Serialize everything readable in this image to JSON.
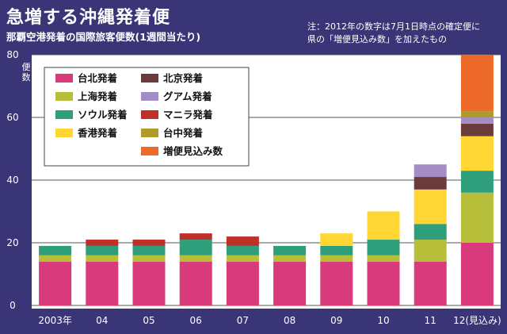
{
  "chart_data": {
    "type": "bar",
    "stacked": true,
    "title": "急増する沖縄発着便",
    "subtitle": "那覇空港発着の国際旅客便数(1週間当たり)",
    "note": [
      "注：2012年の数字は7月1日時点の確定便に",
      "県の「増便見込み数」を加えたもの"
    ],
    "ylabel": "便数",
    "ylim": [
      0,
      80
    ],
    "yticks": [
      0,
      20,
      40,
      60,
      80
    ],
    "grid": true,
    "legend_position": "top-left",
    "categories": [
      "2003年",
      "04",
      "05",
      "06",
      "07",
      "08",
      "09",
      "10",
      "11",
      "12(見込み)"
    ],
    "series": [
      {
        "name": "台北発着",
        "color": "#d93a7c",
        "values": [
          14,
          14,
          14,
          14,
          14,
          14,
          14,
          14,
          14,
          20
        ]
      },
      {
        "name": "上海発着",
        "color": "#b7bf3a",
        "values": [
          2,
          2,
          2,
          2,
          2,
          2,
          2,
          2,
          7,
          16
        ]
      },
      {
        "name": "ソウル発着",
        "color": "#2f9e7a",
        "values": [
          3,
          3,
          3,
          5,
          3,
          3,
          3,
          5,
          5,
          7
        ]
      },
      {
        "name": "香港発着",
        "color": "#ffd633",
        "values": [
          0,
          0,
          0,
          0,
          0,
          0,
          4,
          9,
          11,
          11
        ]
      },
      {
        "name": "北京発着",
        "color": "#6b3a3a",
        "values": [
          0,
          0,
          0,
          0,
          0,
          0,
          0,
          0,
          4,
          4
        ]
      },
      {
        "name": "グアム発着",
        "color": "#a48cc5",
        "values": [
          0,
          0,
          0,
          0,
          0,
          0,
          0,
          0,
          4,
          2
        ]
      },
      {
        "name": "マニラ発着",
        "color": "#c0302a",
        "values": [
          0,
          2,
          2,
          2,
          3,
          0,
          0,
          0,
          0,
          0
        ]
      },
      {
        "name": "台中発着",
        "color": "#b09a2a",
        "values": [
          0,
          0,
          0,
          0,
          0,
          0,
          0,
          0,
          0,
          2
        ]
      },
      {
        "name": "増便見込み数",
        "color": "#ee6a2a",
        "values": [
          0,
          0,
          0,
          0,
          0,
          0,
          0,
          0,
          0,
          18
        ]
      }
    ]
  }
}
